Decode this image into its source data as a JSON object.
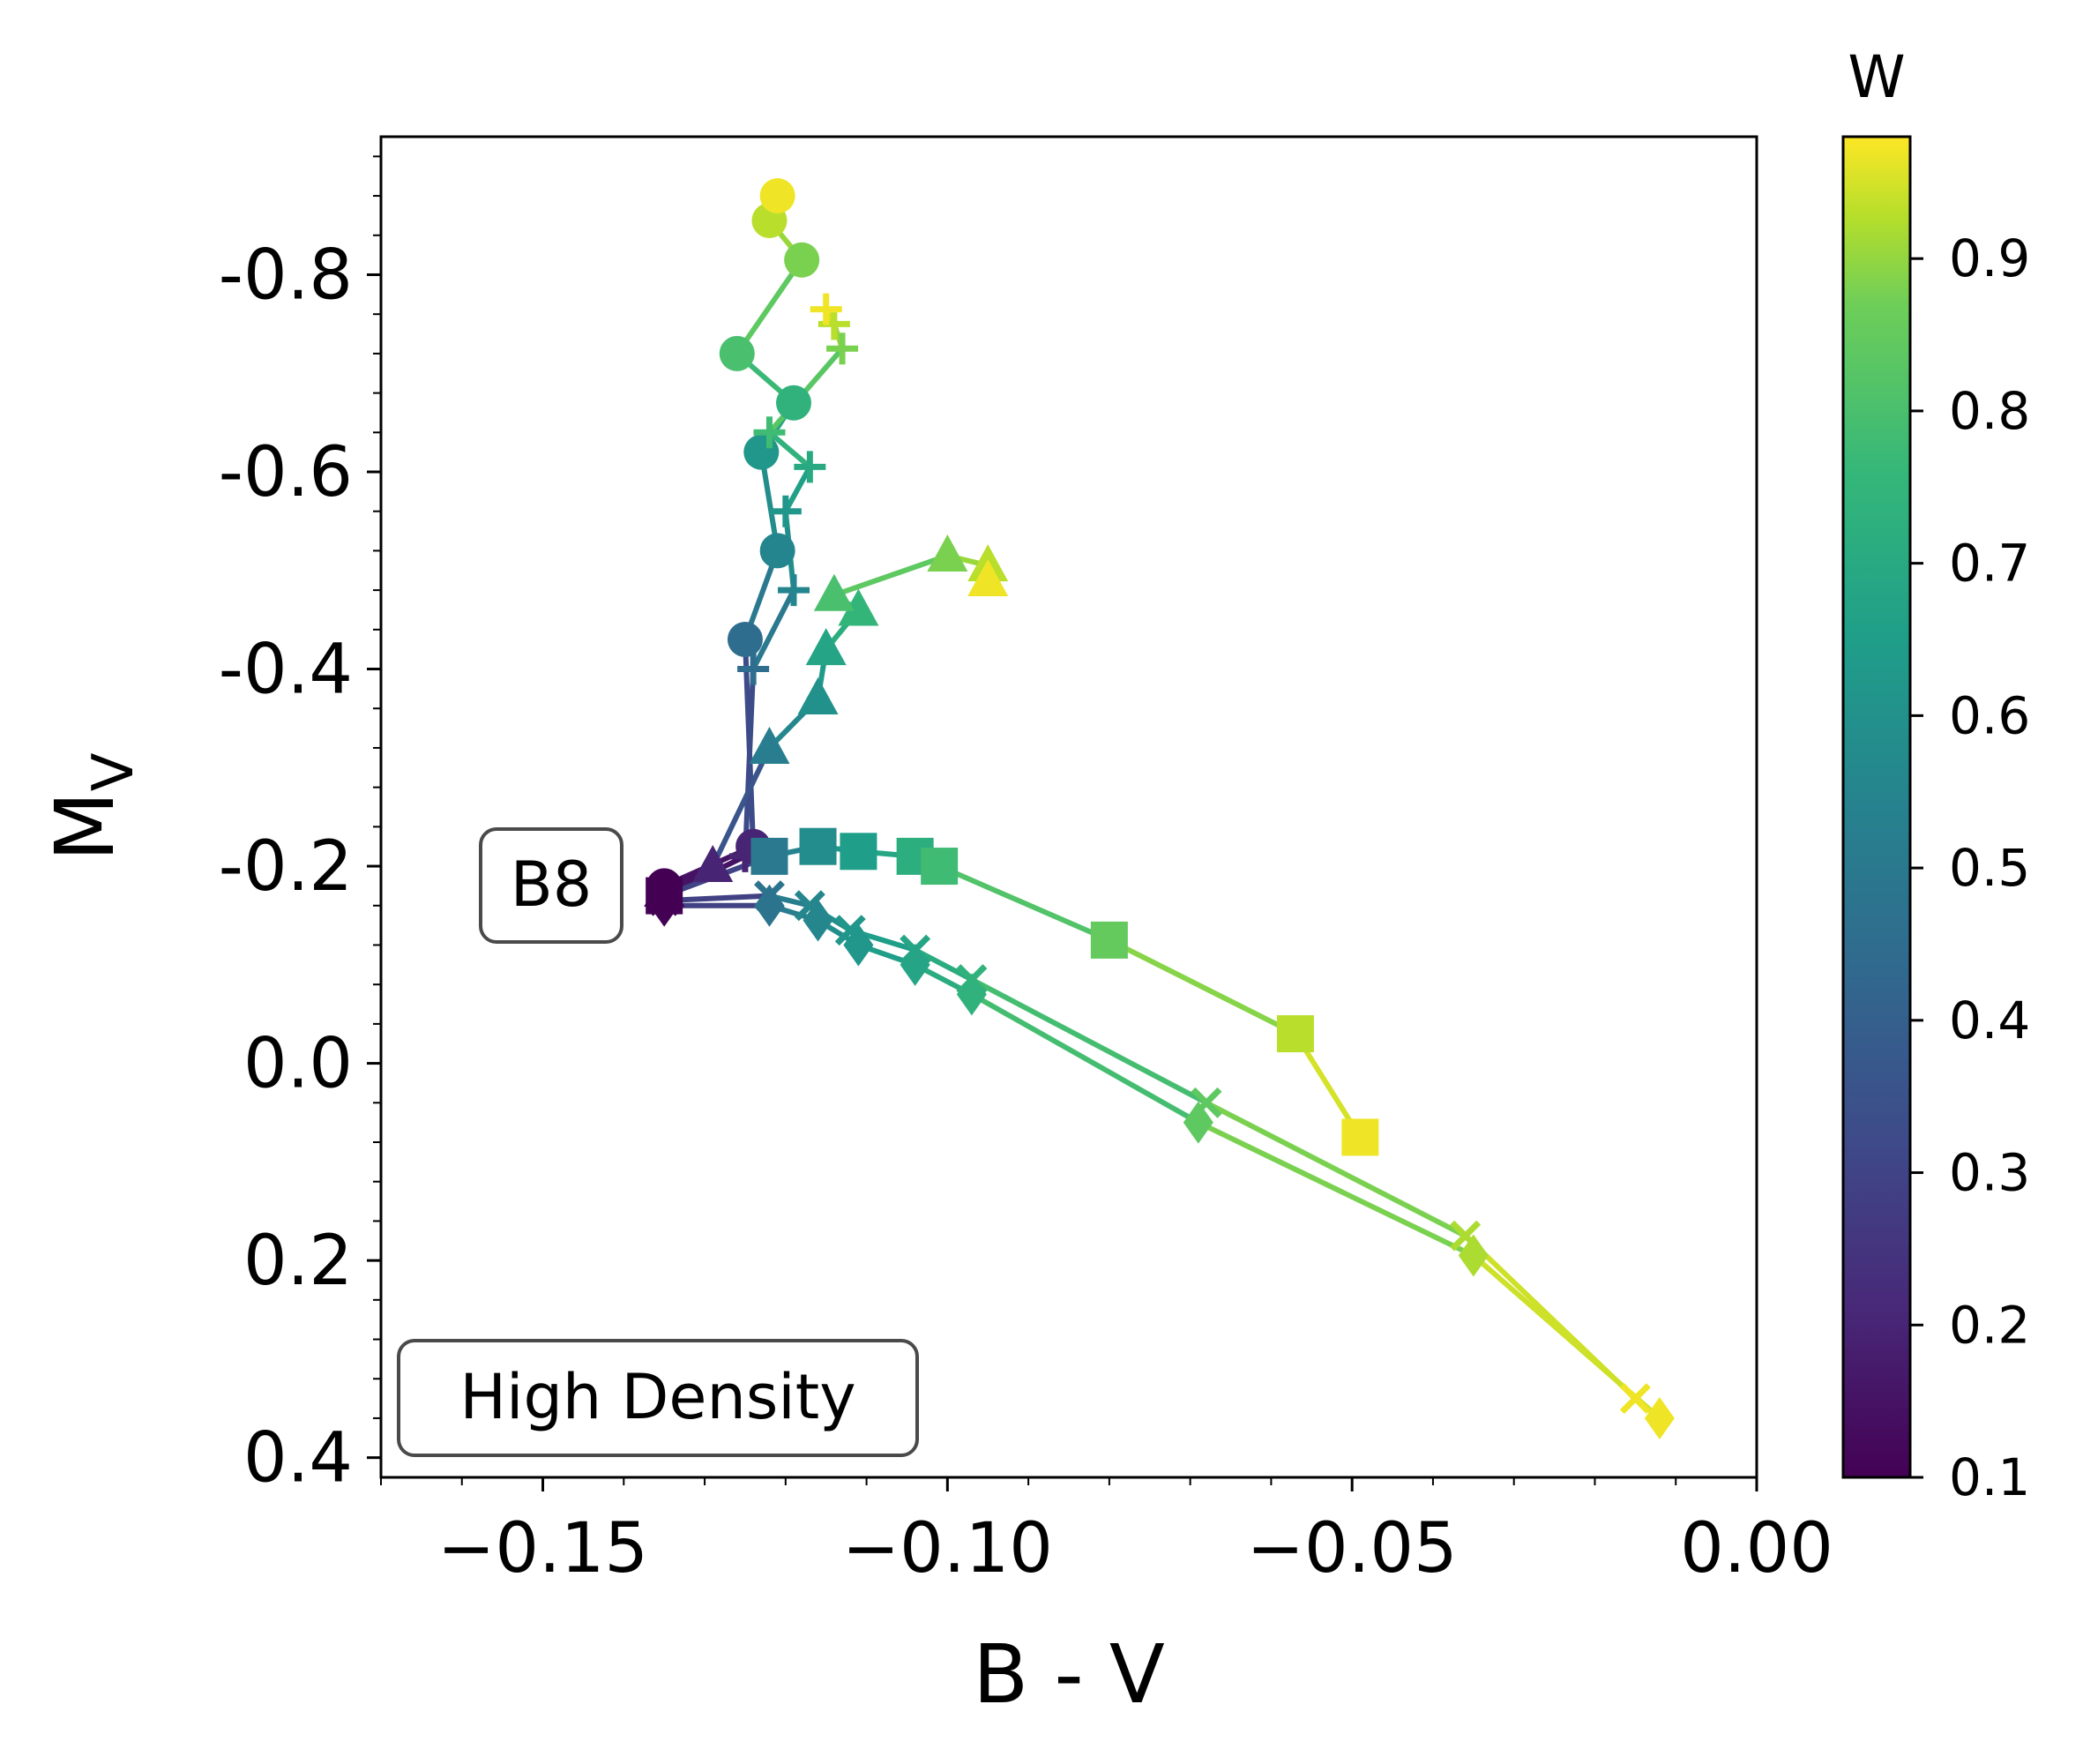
{
  "chart_data": {
    "type": "line",
    "title": "",
    "xlabel": "B - V",
    "ylabel": "M_V",
    "ylabel_main": "M",
    "ylabel_sub": "V",
    "xlim": [
      -0.17,
      0.0
    ],
    "ylim": [
      0.42,
      -0.94
    ],
    "y_inverted": true,
    "x_ticks": [
      -0.15,
      -0.1,
      -0.05,
      0.0
    ],
    "x_tick_labels": [
      "−0.15",
      "−0.10",
      "−0.05",
      "0.00"
    ],
    "y_ticks": [
      -0.8,
      -0.6,
      -0.4,
      -0.2,
      0.0,
      0.2,
      0.4
    ],
    "y_tick_labels": [
      "-0.8",
      "-0.6",
      "-0.4",
      "-0.2",
      "0.0",
      "0.2",
      "0.4"
    ],
    "grid": false,
    "colorbar": {
      "label": "W",
      "colormap": "viridis",
      "range": [
        0.1,
        0.98
      ],
      "ticks": [
        0.1,
        0.2,
        0.3,
        0.4,
        0.5,
        0.6,
        0.7,
        0.8,
        0.9
      ],
      "tick_labels": [
        "0.1",
        "0.2",
        "0.3",
        "0.4",
        "0.5",
        "0.6",
        "0.7",
        "0.8",
        "0.9"
      ]
    },
    "annotations": [
      {
        "text": "B8",
        "location": "left-middle"
      },
      {
        "text": "High Density",
        "location": "bottom-left"
      }
    ],
    "series": [
      {
        "name": "circle",
        "marker": "circle",
        "points": [
          {
            "x": -0.135,
            "y": -0.18,
            "w": 0.1
          },
          {
            "x": -0.124,
            "y": -0.22,
            "w": 0.2
          },
          {
            "x": -0.125,
            "y": -0.43,
            "w": 0.45
          },
          {
            "x": -0.121,
            "y": -0.52,
            "w": 0.55
          },
          {
            "x": -0.123,
            "y": -0.62,
            "w": 0.62
          },
          {
            "x": -0.119,
            "y": -0.67,
            "w": 0.74
          },
          {
            "x": -0.126,
            "y": -0.72,
            "w": 0.8
          },
          {
            "x": -0.118,
            "y": -0.815,
            "w": 0.88
          },
          {
            "x": -0.122,
            "y": -0.855,
            "w": 0.93
          },
          {
            "x": -0.121,
            "y": -0.88,
            "w": 0.97
          }
        ]
      },
      {
        "name": "plus",
        "marker": "plus",
        "points": [
          {
            "x": -0.135,
            "y": -0.17,
            "w": 0.1
          },
          {
            "x": -0.125,
            "y": -0.21,
            "w": 0.2
          },
          {
            "x": -0.124,
            "y": -0.4,
            "w": 0.45
          },
          {
            "x": -0.119,
            "y": -0.48,
            "w": 0.55
          },
          {
            "x": -0.12,
            "y": -0.56,
            "w": 0.62
          },
          {
            "x": -0.117,
            "y": -0.605,
            "w": 0.7
          },
          {
            "x": -0.122,
            "y": -0.64,
            "w": 0.78
          },
          {
            "x": -0.113,
            "y": -0.725,
            "w": 0.88
          },
          {
            "x": -0.114,
            "y": -0.75,
            "w": 0.93
          },
          {
            "x": -0.115,
            "y": -0.765,
            "w": 0.97
          }
        ]
      },
      {
        "name": "triangle",
        "marker": "triangle",
        "points": [
          {
            "x": -0.135,
            "y": -0.175,
            "w": 0.1
          },
          {
            "x": -0.129,
            "y": -0.2,
            "w": 0.2
          },
          {
            "x": -0.122,
            "y": -0.32,
            "w": 0.52
          },
          {
            "x": -0.116,
            "y": -0.37,
            "w": 0.6
          },
          {
            "x": -0.115,
            "y": -0.42,
            "w": 0.68
          },
          {
            "x": -0.111,
            "y": -0.46,
            "w": 0.75
          },
          {
            "x": -0.114,
            "y": -0.475,
            "w": 0.8
          },
          {
            "x": -0.1,
            "y": -0.515,
            "w": 0.88
          },
          {
            "x": -0.095,
            "y": -0.505,
            "w": 0.93
          },
          {
            "x": -0.095,
            "y": -0.49,
            "w": 0.97
          }
        ]
      },
      {
        "name": "square",
        "marker": "square",
        "points": [
          {
            "x": -0.135,
            "y": -0.17,
            "w": 0.1
          },
          {
            "x": -0.122,
            "y": -0.21,
            "w": 0.5
          },
          {
            "x": -0.116,
            "y": -0.22,
            "w": 0.58
          },
          {
            "x": -0.111,
            "y": -0.215,
            "w": 0.65
          },
          {
            "x": -0.104,
            "y": -0.21,
            "w": 0.72
          },
          {
            "x": -0.101,
            "y": -0.2,
            "w": 0.78
          },
          {
            "x": -0.08,
            "y": -0.125,
            "w": 0.85
          },
          {
            "x": -0.057,
            "y": -0.03,
            "w": 0.93
          },
          {
            "x": -0.049,
            "y": 0.075,
            "w": 0.97
          }
        ]
      },
      {
        "name": "x",
        "marker": "x",
        "points": [
          {
            "x": -0.135,
            "y": -0.165,
            "w": 0.1
          },
          {
            "x": -0.122,
            "y": -0.17,
            "w": 0.48
          },
          {
            "x": -0.117,
            "y": -0.16,
            "w": 0.56
          },
          {
            "x": -0.112,
            "y": -0.135,
            "w": 0.62
          },
          {
            "x": -0.104,
            "y": -0.115,
            "w": 0.68
          },
          {
            "x": -0.097,
            "y": -0.085,
            "w": 0.74
          },
          {
            "x": -0.068,
            "y": 0.04,
            "w": 0.84
          },
          {
            "x": -0.036,
            "y": 0.175,
            "w": 0.92
          },
          {
            "x": -0.015,
            "y": 0.34,
            "w": 0.97
          }
        ]
      },
      {
        "name": "diamond",
        "marker": "diamond",
        "points": [
          {
            "x": -0.135,
            "y": -0.16,
            "w": 0.1
          },
          {
            "x": -0.122,
            "y": -0.16,
            "w": 0.48
          },
          {
            "x": -0.116,
            "y": -0.145,
            "w": 0.56
          },
          {
            "x": -0.111,
            "y": -0.12,
            "w": 0.62
          },
          {
            "x": -0.104,
            "y": -0.1,
            "w": 0.68
          },
          {
            "x": -0.097,
            "y": -0.07,
            "w": 0.74
          },
          {
            "x": -0.069,
            "y": 0.06,
            "w": 0.84
          },
          {
            "x": -0.035,
            "y": 0.195,
            "w": 0.92
          },
          {
            "x": -0.012,
            "y": 0.36,
            "w": 0.97
          }
        ]
      }
    ]
  }
}
